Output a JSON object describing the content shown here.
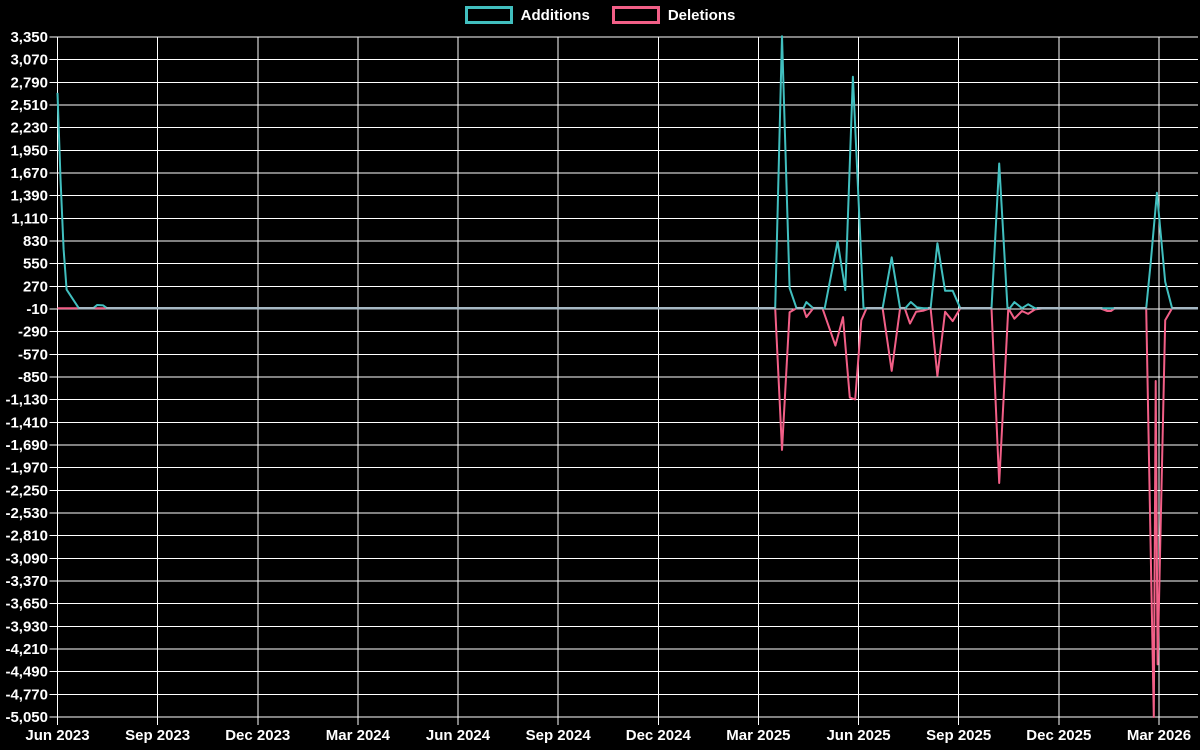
{
  "legend": {
    "additions_label": "Additions",
    "deletions_label": "Deletions"
  },
  "chart_data": {
    "type": "line",
    "title": "",
    "background": "#000000",
    "grid_color": "#ffffff",
    "text_color": "#ffffff",
    "baseline_overlap_color": "#a6b8c4",
    "legend_position": "top-center",
    "y_axis": {
      "max": 3350,
      "min": -5050,
      "tick_step": 280,
      "tick_labels": [
        "3,350",
        "3,070",
        "2,790",
        "2,510",
        "2,230",
        "1,950",
        "1,670",
        "1,390",
        "1,110",
        "830",
        "550",
        "270",
        "-10",
        "-290",
        "-570",
        "-850",
        "-1,130",
        "-1,410",
        "-1,690",
        "-1,970",
        "-2,250",
        "-2,530",
        "-2,810",
        "-3,090",
        "-3,370",
        "-3,650",
        "-3,930",
        "-4,210",
        "-4,490",
        "-4,770",
        "-5,050"
      ]
    },
    "x_axis": {
      "unit": "weeks since Jun 2023",
      "tick_labels": [
        "Jun 2023",
        "Sep 2023",
        "Dec 2023",
        "Mar 2024",
        "Jun 2024",
        "Sep 2024",
        "Dec 2024",
        "Mar 2025",
        "Jun 2025",
        "Sep 2025",
        "Dec 2025",
        "Mar 2026"
      ],
      "tick_interval_weeks": 13.143,
      "total_weeks": 149.7
    },
    "series": [
      {
        "name": "Additions",
        "color": "#41bfbf",
        "points": [
          [
            0,
            2660
          ],
          [
            0.4,
            1600
          ],
          [
            0.8,
            730
          ],
          [
            1.2,
            230
          ],
          [
            2.8,
            0
          ],
          [
            4.7,
            0
          ],
          [
            5.2,
            40
          ],
          [
            6.0,
            35
          ],
          [
            6.5,
            0
          ],
          [
            94.2,
            0
          ],
          [
            95.1,
            3360
          ],
          [
            96.1,
            250
          ],
          [
            97,
            0
          ],
          [
            97.9,
            0
          ],
          [
            98.3,
            75
          ],
          [
            99.2,
            0
          ],
          [
            100.7,
            0
          ],
          [
            102.4,
            824
          ],
          [
            103.4,
            223
          ],
          [
            104.4,
            2858
          ],
          [
            105.8,
            0
          ],
          [
            108.3,
            0
          ],
          [
            109.5,
            629
          ],
          [
            110.6,
            0
          ],
          [
            111.3,
            0
          ],
          [
            112,
            77
          ],
          [
            112.8,
            10
          ],
          [
            113.7,
            0
          ],
          [
            114.6,
            0
          ],
          [
            115.5,
            803
          ],
          [
            116.5,
            215
          ],
          [
            117.5,
            215
          ],
          [
            118.5,
            0
          ],
          [
            122.6,
            0
          ],
          [
            123.6,
            1787
          ],
          [
            124.7,
            0
          ],
          [
            125.0,
            0
          ],
          [
            125.6,
            75
          ],
          [
            126.6,
            0
          ],
          [
            127.4,
            48
          ],
          [
            128.3,
            0
          ],
          [
            142.9,
            0
          ],
          [
            143.5,
            575
          ],
          [
            144.3,
            1426
          ],
          [
            145.4,
            326
          ],
          [
            146.3,
            0
          ],
          [
            149.7,
            0
          ]
        ]
      },
      {
        "name": "Deletions",
        "color": "#f25f87",
        "points": [
          [
            0,
            0
          ],
          [
            94.2,
            0
          ],
          [
            95.1,
            -1750
          ],
          [
            96.1,
            -50
          ],
          [
            97,
            0
          ],
          [
            97.9,
            0
          ],
          [
            98.3,
            -110
          ],
          [
            99.2,
            0
          ],
          [
            100.4,
            0
          ],
          [
            102.1,
            -462
          ],
          [
            103.1,
            -110
          ],
          [
            104,
            -1105
          ],
          [
            104.7,
            -1127
          ],
          [
            105.5,
            -150
          ],
          [
            106.2,
            0
          ],
          [
            108.3,
            0
          ],
          [
            109.5,
            -775
          ],
          [
            110.6,
            0
          ],
          [
            111.2,
            0
          ],
          [
            111.9,
            -190
          ],
          [
            112.7,
            -45
          ],
          [
            113.7,
            -30
          ],
          [
            114.6,
            0
          ],
          [
            115.5,
            -836
          ],
          [
            116.5,
            -45
          ],
          [
            117.5,
            -160
          ],
          [
            118.5,
            0
          ],
          [
            122.6,
            0
          ],
          [
            123.6,
            -2160
          ],
          [
            124.8,
            0
          ],
          [
            125.6,
            -130
          ],
          [
            126.6,
            -35
          ],
          [
            127.4,
            -70
          ],
          [
            128.3,
            -15
          ],
          [
            129.5,
            0
          ],
          [
            136.8,
            0
          ],
          [
            137.8,
            -35
          ],
          [
            138.3,
            -35
          ],
          [
            138.8,
            0
          ],
          [
            142.9,
            0
          ],
          [
            143.9,
            -5050
          ],
          [
            144.15,
            -900
          ],
          [
            144.4,
            -4400
          ],
          [
            145.4,
            -150
          ],
          [
            146.3,
            0
          ],
          [
            149.7,
            0
          ]
        ]
      }
    ]
  }
}
